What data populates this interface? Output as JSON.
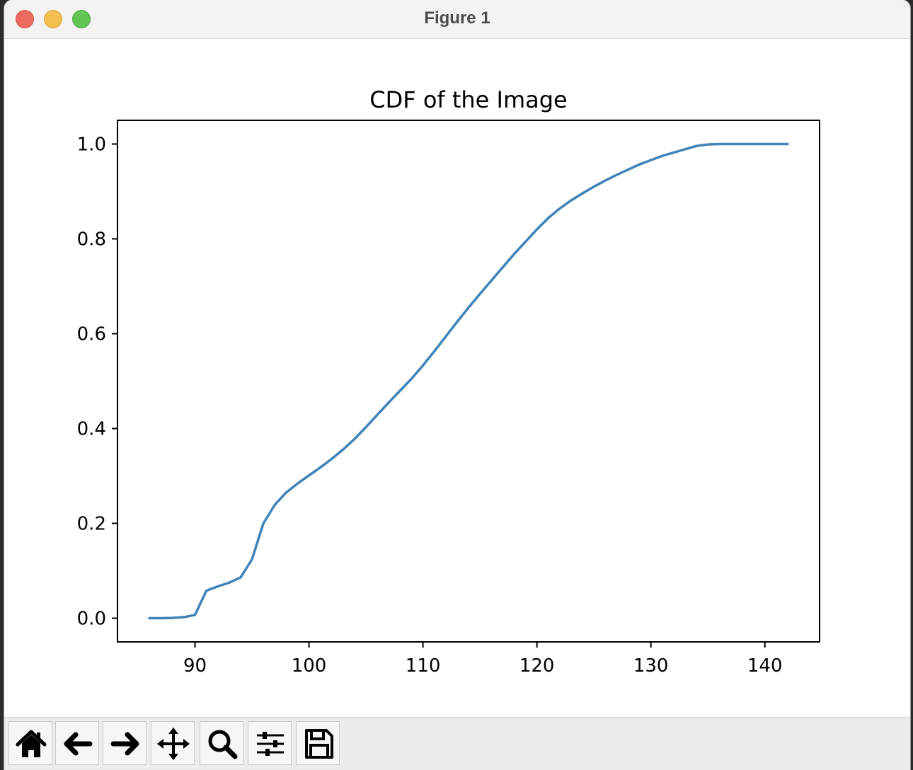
{
  "window": {
    "title": "Figure 1"
  },
  "toolbar": {
    "buttons": [
      {
        "name": "home-button",
        "icon": "home-icon"
      },
      {
        "name": "back-button",
        "icon": "arrow-left-icon"
      },
      {
        "name": "forward-button",
        "icon": "arrow-right-icon"
      },
      {
        "name": "pan-button",
        "icon": "move-icon"
      },
      {
        "name": "zoom-button",
        "icon": "magnifier-icon"
      },
      {
        "name": "configure-subplots-button",
        "icon": "sliders-icon"
      },
      {
        "name": "save-button",
        "icon": "floppy-disk-icon"
      }
    ]
  },
  "chart_data": {
    "type": "line",
    "title": "CDF of the Image",
    "xlabel": "",
    "ylabel": "",
    "xlim": [
      83.2,
      144.8
    ],
    "ylim": [
      -0.05,
      1.05
    ],
    "xticks": [
      90,
      100,
      110,
      120,
      130,
      140
    ],
    "xtick_labels": [
      "90",
      "100",
      "110",
      "120",
      "130",
      "140"
    ],
    "yticks": [
      0.0,
      0.2,
      0.4,
      0.6,
      0.8,
      1.0
    ],
    "ytick_labels": [
      "0.0",
      "0.2",
      "0.4",
      "0.6",
      "0.8",
      "1.0"
    ],
    "grid": false,
    "line_color": "#4083b8",
    "series": [
      {
        "x": [
          86,
          87,
          88,
          89,
          90,
          91,
          92,
          93,
          94,
          95,
          96,
          97,
          98,
          99,
          100,
          101,
          102,
          103,
          104,
          105,
          106,
          107,
          108,
          109,
          110,
          111,
          112,
          113,
          114,
          115,
          116,
          117,
          118,
          119,
          120,
          121,
          122,
          123,
          124,
          125,
          126,
          127,
          128,
          129,
          130,
          131,
          132,
          133,
          134,
          135,
          136,
          137,
          138,
          139,
          140,
          141,
          142
        ],
        "y": [
          0.0,
          0.0,
          0.0005,
          0.002,
          0.007,
          0.058,
          0.067,
          0.075,
          0.086,
          0.124,
          0.2,
          0.239,
          0.265,
          0.284,
          0.301,
          0.318,
          0.336,
          0.356,
          0.378,
          0.403,
          0.429,
          0.455,
          0.48,
          0.505,
          0.533,
          0.563,
          0.594,
          0.625,
          0.655,
          0.684,
          0.712,
          0.74,
          0.768,
          0.794,
          0.82,
          0.844,
          0.864,
          0.881,
          0.896,
          0.91,
          0.923,
          0.935,
          0.946,
          0.957,
          0.966,
          0.975,
          0.982,
          0.989,
          0.996,
          0.999,
          1.0,
          1.0,
          1.0,
          1.0,
          1.0,
          1.0,
          1.0
        ]
      }
    ]
  }
}
